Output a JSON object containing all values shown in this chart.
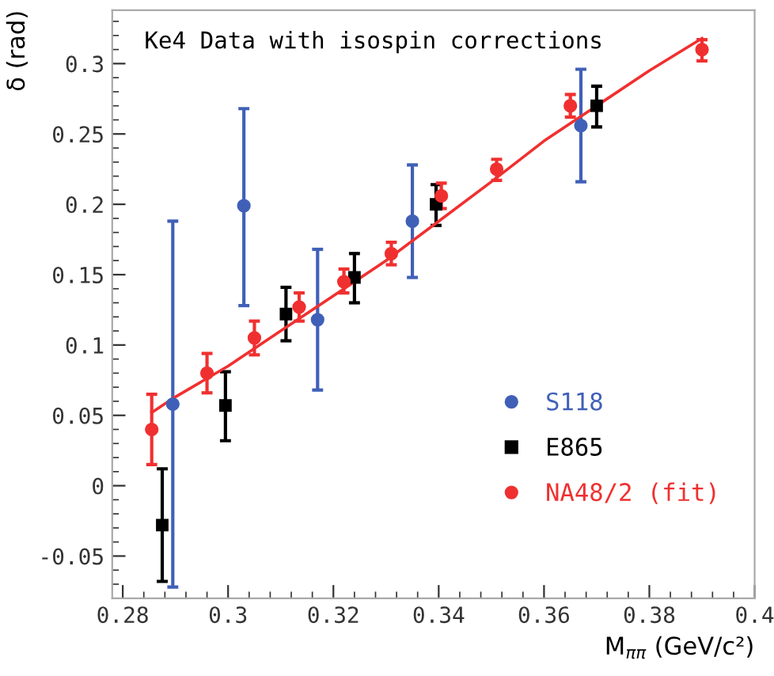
{
  "chart_data": {
    "type": "scatter",
    "title": "Ke4 Data with isospin corrections",
    "xlabel": "M$_{ππ}$ (GeV/c²)",
    "ylabel": "δ (rad)",
    "xlim": [
      0.278,
      0.4
    ],
    "ylim": [
      -0.08,
      0.338
    ],
    "xticks": [
      0.28,
      0.3,
      0.32,
      0.34,
      0.36,
      0.38,
      0.4
    ],
    "yticks": [
      -0.05,
      0,
      0.05,
      0.1,
      0.15,
      0.2,
      0.25,
      0.3
    ],
    "grid": false,
    "legend": "bottom right",
    "series": [
      {
        "name": "S118",
        "color": "#4060b8",
        "marker": "circle",
        "x": [
          0.2895,
          0.303,
          0.317,
          0.335,
          0.367
        ],
        "values": [
          0.058,
          0.199,
          0.118,
          0.188,
          0.256
        ],
        "errors": [
          [
            -0.072,
            0.188
          ],
          [
            0.128,
            0.268
          ],
          [
            0.068,
            0.168
          ],
          [
            0.148,
            0.228
          ],
          [
            0.216,
            0.296
          ]
        ]
      },
      {
        "name": "E865",
        "color": "#000000",
        "marker": "square",
        "x": [
          0.2875,
          0.2995,
          0.311,
          0.324,
          0.3395,
          0.37
        ],
        "values": [
          -0.028,
          0.057,
          0.122,
          0.148,
          0.2,
          0.27
        ],
        "errors": [
          [
            -0.068,
            0.012
          ],
          [
            0.032,
            0.081
          ],
          [
            0.103,
            0.141
          ],
          [
            0.13,
            0.165
          ],
          [
            0.185,
            0.214
          ],
          [
            0.255,
            0.284
          ]
        ]
      },
      {
        "name": "NA48/2 (fit)",
        "color": "#f03030",
        "marker": "circle",
        "x": [
          0.2855,
          0.296,
          0.305,
          0.3135,
          0.322,
          0.331,
          0.3405,
          0.351,
          0.365,
          0.39
        ],
        "values": [
          0.04,
          0.08,
          0.105,
          0.127,
          0.145,
          0.165,
          0.206,
          0.225,
          0.27,
          0.31
        ],
        "errors": [
          [
            0.015,
            0.065
          ],
          [
            0.066,
            0.094
          ],
          [
            0.093,
            0.117
          ],
          [
            0.117,
            0.137
          ],
          [
            0.137,
            0.154
          ],
          [
            0.157,
            0.173
          ],
          [
            0.197,
            0.215
          ],
          [
            0.217,
            0.232
          ],
          [
            0.262,
            0.278
          ],
          [
            0.302,
            0.317
          ]
        ]
      },
      {
        "type": "line",
        "color": "#f03030",
        "x": [
          0.2855,
          0.2895,
          0.3,
          0.31,
          0.32,
          0.33,
          0.34,
          0.35,
          0.36,
          0.37,
          0.38,
          0.39
        ],
        "values": [
          0.052,
          0.062,
          0.085,
          0.11,
          0.135,
          0.16,
          0.188,
          0.216,
          0.245,
          0.27,
          0.295,
          0.318
        ]
      }
    ]
  }
}
